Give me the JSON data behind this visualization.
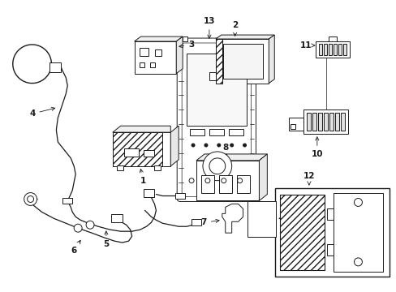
{
  "bg_color": "#ffffff",
  "line_color": "#1a1a1a",
  "fig_width": 4.89,
  "fig_height": 3.6,
  "dpi": 100,
  "lw": 0.7,
  "label_fontsize": 7.5
}
